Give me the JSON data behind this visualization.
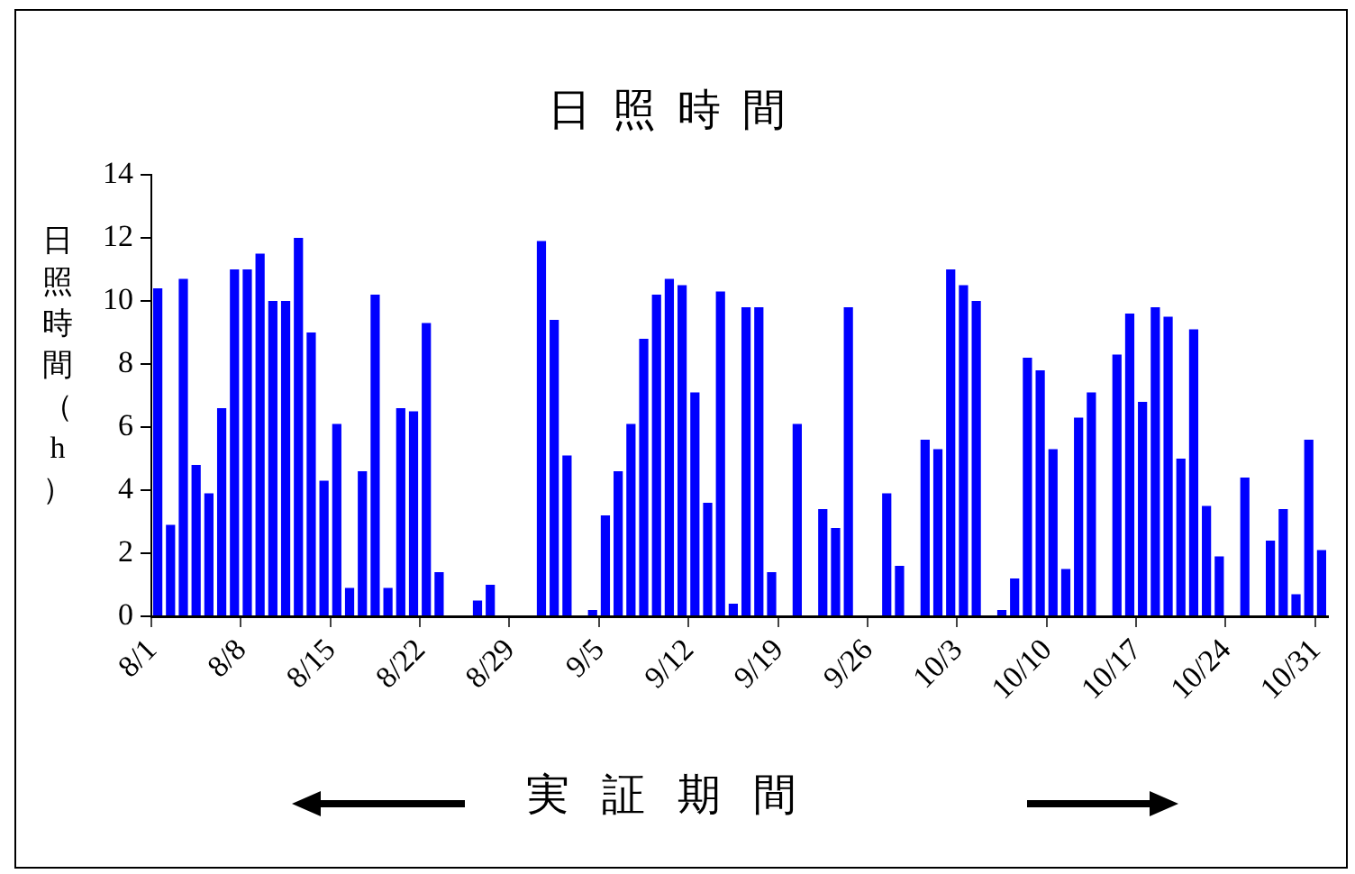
{
  "chart_data": {
    "type": "bar",
    "title": "日照時間",
    "xlabel": "実証期間",
    "ylabel": "日照時間（h）",
    "categories": [
      "8/1",
      null,
      null,
      null,
      null,
      null,
      null,
      "8/8",
      null,
      null,
      null,
      null,
      null,
      null,
      "8/15",
      null,
      null,
      null,
      null,
      null,
      null,
      "8/22",
      null,
      null,
      null,
      null,
      null,
      null,
      "8/29",
      null,
      null,
      null,
      null,
      null,
      null,
      "9/5",
      null,
      null,
      null,
      null,
      null,
      null,
      "9/12",
      null,
      null,
      null,
      null,
      null,
      null,
      "9/19",
      null,
      null,
      null,
      null,
      null,
      null,
      "9/26",
      null,
      null,
      null,
      null,
      null,
      null,
      "10/3",
      null,
      null,
      null,
      null,
      null,
      null,
      "10/10",
      null,
      null,
      null,
      null,
      null,
      null,
      "10/17",
      null,
      null,
      null,
      null,
      null,
      null,
      "10/24",
      null,
      null,
      null,
      null,
      null,
      null,
      "10/31"
    ],
    "values": [
      10.4,
      2.9,
      10.7,
      4.8,
      3.9,
      6.6,
      11.0,
      11.0,
      11.5,
      10.0,
      10.0,
      12.0,
      9.0,
      4.3,
      6.1,
      0.9,
      4.6,
      10.2,
      0.9,
      6.6,
      6.5,
      9.3,
      1.4,
      null,
      null,
      0.5,
      1.0,
      null,
      null,
      null,
      11.9,
      9.4,
      5.1,
      null,
      0.2,
      3.2,
      4.6,
      6.1,
      8.8,
      10.2,
      10.7,
      10.5,
      7.1,
      3.6,
      10.3,
      0.4,
      9.8,
      9.8,
      1.4,
      null,
      6.1,
      null,
      3.4,
      2.8,
      9.8,
      null,
      null,
      3.9,
      1.6,
      null,
      5.6,
      5.3,
      11.0,
      10.5,
      10.0,
      null,
      0.2,
      1.2,
      8.2,
      7.8,
      5.3,
      1.5,
      6.3,
      7.1,
      null,
      8.3,
      9.6,
      6.8,
      9.8,
      9.5,
      5.0,
      9.1,
      3.5,
      1.9,
      null,
      4.4,
      null,
      2.4,
      3.4,
      0.7,
      5.6,
      2.1
    ],
    "color": "#0000ff",
    "ylim": [
      0,
      14
    ],
    "yticks": [
      0,
      2,
      4,
      6,
      8,
      10,
      12,
      14
    ],
    "grid": false,
    "legend": false
  }
}
